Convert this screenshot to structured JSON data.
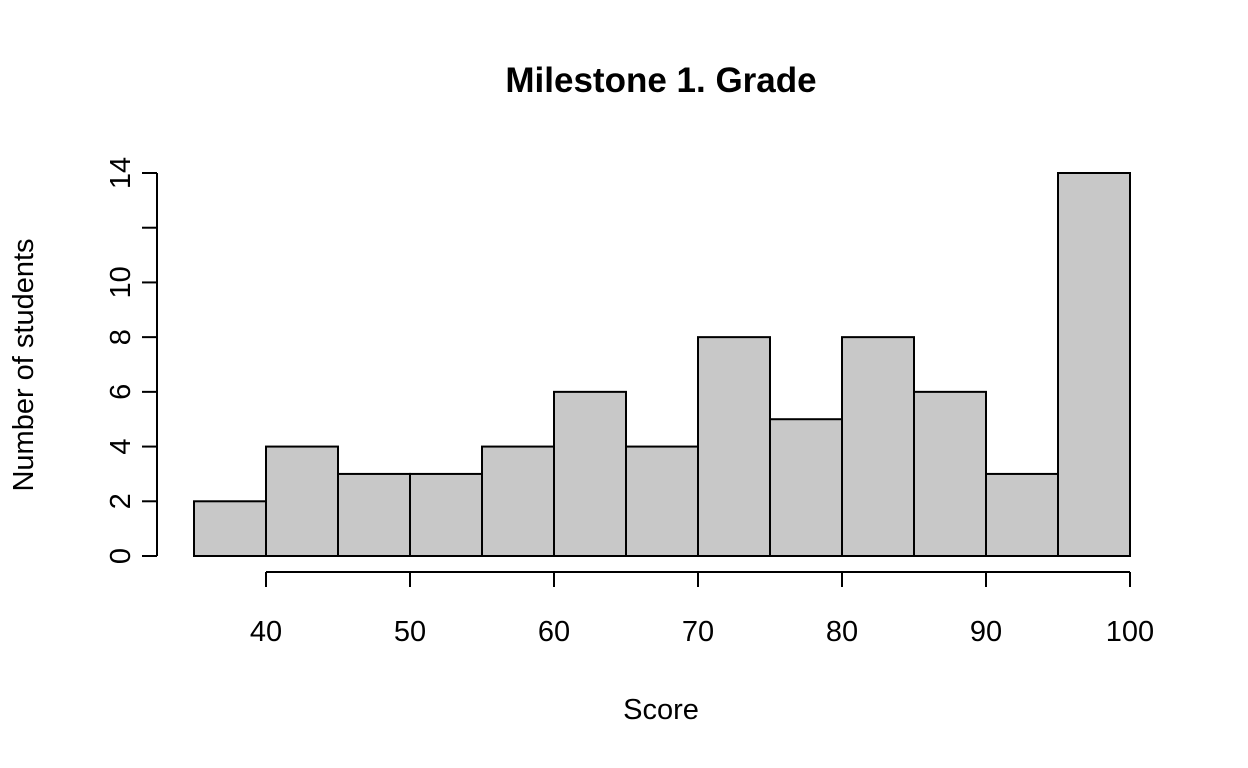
{
  "chart_data": {
    "type": "bar",
    "title": "Milestone 1. Grade",
    "xlabel": "Score",
    "ylabel": "Number of students",
    "bins": [
      {
        "start": 35,
        "end": 40,
        "count": 2
      },
      {
        "start": 40,
        "end": 45,
        "count": 4
      },
      {
        "start": 45,
        "end": 50,
        "count": 3
      },
      {
        "start": 50,
        "end": 55,
        "count": 3
      },
      {
        "start": 55,
        "end": 60,
        "count": 4
      },
      {
        "start": 60,
        "end": 65,
        "count": 6
      },
      {
        "start": 65,
        "end": 70,
        "count": 4
      },
      {
        "start": 70,
        "end": 75,
        "count": 8
      },
      {
        "start": 75,
        "end": 80,
        "count": 5
      },
      {
        "start": 80,
        "end": 85,
        "count": 8
      },
      {
        "start": 85,
        "end": 90,
        "count": 6
      },
      {
        "start": 90,
        "end": 95,
        "count": 3
      },
      {
        "start": 95,
        "end": 100,
        "count": 14
      }
    ],
    "xticks": [
      "40",
      "50",
      "60",
      "70",
      "80",
      "90",
      "100"
    ],
    "yticks": [
      "0",
      "2",
      "4",
      "6",
      "8",
      "10",
      "12",
      "14"
    ],
    "ytick_labels_shown": [
      "0",
      "2",
      "4",
      "6",
      "8",
      "10",
      "14"
    ],
    "xlim": [
      35,
      100
    ],
    "ylim": [
      0,
      14
    ],
    "grid": false,
    "bar_fill": "#c8c8c8",
    "bar_stroke": "#000000"
  }
}
